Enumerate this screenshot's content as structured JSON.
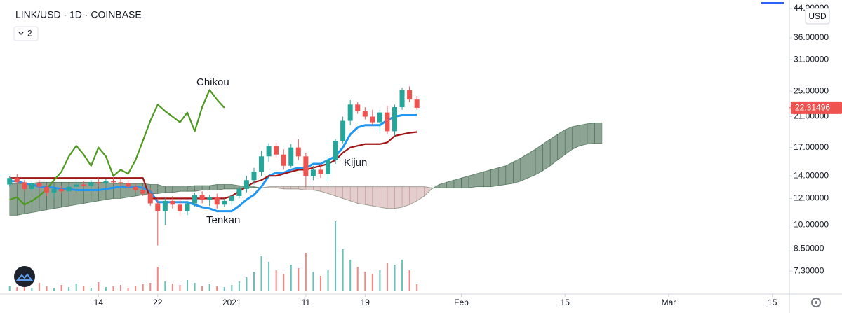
{
  "chart_data": {
    "type": "candlestick",
    "title": "LINK/USD · 1D · COINBASE",
    "indicator_badge": "2",
    "currency": "USD",
    "log_scale": true,
    "grid": false,
    "up_color": "#26a69a",
    "down_color": "#ef5350",
    "cloud_up_color": "#2f5a3c",
    "cloud_down_color": "#a35a5a",
    "xlim": [
      -1.3,
      105.3
    ],
    "xticks": [
      {
        "value": 12,
        "label": "14"
      },
      {
        "value": 20,
        "label": "22"
      },
      {
        "value": 30,
        "label": "2021"
      },
      {
        "value": 40,
        "label": "11"
      },
      {
        "value": 48,
        "label": "19"
      },
      {
        "value": 61,
        "label": "Feb"
      },
      {
        "value": 75,
        "label": "15"
      },
      {
        "value": 89,
        "label": "Mar"
      },
      {
        "value": 103,
        "label": "15"
      }
    ],
    "ylim": [
      6.24,
      46.6
    ],
    "yticks": [
      {
        "value": 44,
        "label": "44.00000"
      },
      {
        "value": 36,
        "label": "36.00000"
      },
      {
        "value": 31,
        "label": "31.00000"
      },
      {
        "value": 25,
        "label": "25.00000"
      },
      {
        "value": 21,
        "label": "21.00000"
      },
      {
        "value": 17,
        "label": "17.00000"
      },
      {
        "value": 14,
        "label": "14.00000"
      },
      {
        "value": 12,
        "label": "12.00000"
      },
      {
        "value": 10,
        "label": "10.00000"
      },
      {
        "value": 8.5,
        "label": "8.50000"
      },
      {
        "value": 7.3,
        "label": "7.30000"
      }
    ],
    "last_price": {
      "value": 22.31496,
      "label": "22.31496"
    },
    "open": [
      13.2,
      13.8,
      13.4,
      12.8,
      13.3,
      13.0,
      12.5,
      12.8,
      12.6,
      13.0,
      13.2,
      13.1,
      13.4,
      13.3,
      13.5,
      13.4,
      13.3,
      13.0,
      12.7,
      12.4,
      11.6,
      11.0,
      11.8,
      11.5,
      11.0,
      11.6,
      12.3,
      11.9,
      12.1,
      11.5,
      11.8,
      12.2,
      12.8,
      13.6,
      14.4,
      16.0,
      17.2,
      16.2,
      15.0,
      17.0,
      16.0,
      14.0,
      14.6,
      14.2,
      15.6,
      17.8,
      20.4,
      22.8,
      21.8,
      21.0,
      20.2,
      21.6,
      19.0,
      22.4,
      25.2,
      23.6
    ],
    "high": [
      14.0,
      14.2,
      13.6,
      13.5,
      13.6,
      13.2,
      13.0,
      13.1,
      13.2,
      13.4,
      13.5,
      13.6,
      13.8,
      13.7,
      13.9,
      13.8,
      13.6,
      13.3,
      13.0,
      12.9,
      12.0,
      12.0,
      12.2,
      11.9,
      11.8,
      12.5,
      12.6,
      12.3,
      12.4,
      12.0,
      12.3,
      13.0,
      14.0,
      14.8,
      16.6,
      17.5,
      17.6,
      16.8,
      17.4,
      18.0,
      16.4,
      15.0,
      15.2,
      16.0,
      18.0,
      21.0,
      23.5,
      23.2,
      22.4,
      22.0,
      22.0,
      22.6,
      22.8,
      25.6,
      25.8,
      24.2
    ],
    "low": [
      13.0,
      13.2,
      12.6,
      12.6,
      12.8,
      12.2,
      12.0,
      12.4,
      12.4,
      12.7,
      12.9,
      12.9,
      13.0,
      13.1,
      13.2,
      13.0,
      12.8,
      12.5,
      12.2,
      11.4,
      8.7,
      10.0,
      11.2,
      10.6,
      10.7,
      11.3,
      11.6,
      11.4,
      11.2,
      11.3,
      11.5,
      12.0,
      12.5,
      13.2,
      14.0,
      15.4,
      15.8,
      14.6,
      14.8,
      15.6,
      13.0,
      13.6,
      13.8,
      13.5,
      15.2,
      17.5,
      19.8,
      21.4,
      20.6,
      19.8,
      19.0,
      18.6,
      18.4,
      22.0,
      23.2,
      22.0
    ],
    "close": [
      13.8,
      13.4,
      12.8,
      13.3,
      13.0,
      12.5,
      12.8,
      12.6,
      13.0,
      13.2,
      13.1,
      13.4,
      13.3,
      13.5,
      13.4,
      13.3,
      13.0,
      12.7,
      12.4,
      11.6,
      11.0,
      11.8,
      11.5,
      11.0,
      11.6,
      12.3,
      11.9,
      12.1,
      11.5,
      11.8,
      12.2,
      12.8,
      13.6,
      14.4,
      16.0,
      17.2,
      16.2,
      15.0,
      17.0,
      16.0,
      14.0,
      14.6,
      14.2,
      15.6,
      17.8,
      20.4,
      22.8,
      21.8,
      21.0,
      20.2,
      21.6,
      19.0,
      22.4,
      25.2,
      23.6,
      22.3
    ],
    "volume": [
      8,
      6,
      10,
      5,
      12,
      7,
      4,
      9,
      6,
      11,
      8,
      5,
      13,
      6,
      7,
      9,
      5,
      8,
      10,
      12,
      35,
      14,
      11,
      9,
      16,
      12,
      8,
      10,
      7,
      6,
      9,
      14,
      20,
      28,
      50,
      42,
      30,
      25,
      38,
      33,
      55,
      28,
      22,
      30,
      100,
      60,
      45,
      35,
      28,
      25,
      30,
      40,
      38,
      45,
      30,
      10
    ],
    "series": [
      {
        "name": "Tenkan",
        "color": "#2196f3",
        "values": [
          13.5,
          13.5,
          13.3,
          13.2,
          13.0,
          13.0,
          12.9,
          12.8,
          12.8,
          12.7,
          12.7,
          12.7,
          12.7,
          12.8,
          12.9,
          13.0,
          13.0,
          13.0,
          12.9,
          12.6,
          11.7,
          11.7,
          11.7,
          11.7,
          11.7,
          11.5,
          11.3,
          11.2,
          11.0,
          11.0,
          11.0,
          11.4,
          11.9,
          12.3,
          13.0,
          14.0,
          14.3,
          14.3,
          14.6,
          14.8,
          14.8,
          15.2,
          15.2,
          15.6,
          16.0,
          17.0,
          18.6,
          19.5,
          19.8,
          19.8,
          19.8,
          20.5,
          21.0,
          21.2,
          21.2,
          21.2
        ]
      },
      {
        "name": "Kijun",
        "color": "#a31515",
        "values": [
          13.8,
          13.8,
          13.8,
          13.8,
          13.8,
          13.8,
          13.8,
          13.8,
          13.8,
          13.8,
          13.8,
          13.8,
          13.8,
          13.8,
          13.8,
          13.8,
          13.8,
          13.8,
          13.8,
          12.0,
          12.0,
          12.0,
          12.0,
          12.0,
          12.0,
          12.0,
          12.0,
          12.0,
          12.0,
          12.0,
          12.2,
          12.6,
          13.0,
          13.4,
          13.6,
          14.0,
          14.0,
          14.2,
          14.4,
          14.6,
          14.6,
          14.8,
          15.0,
          15.2,
          15.6,
          16.4,
          17.0,
          17.2,
          17.4,
          17.4,
          17.4,
          17.6,
          18.4,
          18.6,
          18.8,
          18.9
        ]
      },
      {
        "name": "Chikou",
        "color": "#4e9a1f",
        "values": [
          11.9,
          12.1,
          11.5,
          11.8,
          12.2,
          12.8,
          13.6,
          14.4,
          16.0,
          17.2,
          16.2,
          15.0,
          17.0,
          16.0,
          14.0,
          14.6,
          14.2,
          15.6,
          17.8,
          20.4,
          22.8,
          21.8,
          21.0,
          20.2,
          21.6,
          19.0,
          22.4,
          25.2,
          23.6,
          22.3
        ]
      }
    ],
    "span_a": [
      13.3,
      13.3,
      13.3,
      13.3,
      13.4,
      13.4,
      13.4,
      13.4,
      13.4,
      13.4,
      13.4,
      13.4,
      13.4,
      13.4,
      13.3,
      13.3,
      13.3,
      13.3,
      13.3,
      13.2,
      13.2,
      13.0,
      13.0,
      13.0,
      13.0,
      13.1,
      13.1,
      13.1,
      13.2,
      13.2,
      13.2,
      13.1,
      13.0,
      13.0,
      12.9,
      12.9,
      12.9,
      12.8,
      12.8,
      12.8,
      12.7,
      12.7,
      12.6,
      12.4,
      12.2,
      12.0,
      11.8,
      11.6,
      11.5,
      11.4,
      11.3,
      11.2,
      11.2,
      11.3,
      11.5,
      11.8,
      12.2,
      12.8,
      13.2,
      13.4,
      13.6,
      13.8,
      14.0,
      14.2,
      14.4,
      14.6,
      14.8,
      15.0,
      15.4,
      15.8,
      16.3,
      16.8,
      17.4,
      18.0,
      18.6,
      19.2,
      19.6,
      19.8,
      20.0,
      20.1,
      20.1
    ],
    "span_b": [
      10.7,
      10.7,
      10.8,
      10.9,
      11.0,
      11.1,
      11.2,
      11.3,
      11.4,
      11.5,
      11.6,
      11.7,
      11.8,
      11.9,
      12.0,
      12.0,
      12.1,
      12.2,
      12.3,
      12.4,
      12.4,
      12.5,
      12.5,
      12.6,
      12.6,
      12.6,
      12.7,
      12.7,
      12.7,
      12.8,
      12.8,
      12.8,
      12.9,
      12.9,
      12.9,
      13.0,
      13.0,
      13.0,
      13.0,
      13.0,
      13.0,
      13.0,
      13.0,
      13.0,
      13.0,
      13.0,
      13.0,
      13.0,
      13.0,
      13.0,
      13.0,
      13.0,
      13.0,
      13.0,
      13.0,
      13.0,
      13.0,
      12.9,
      12.9,
      12.9,
      12.9,
      12.9,
      12.9,
      13.0,
      13.0,
      13.0,
      13.1,
      13.2,
      13.3,
      13.5,
      13.8,
      14.1,
      14.5,
      15.0,
      15.6,
      16.2,
      16.8,
      17.2,
      17.4,
      17.5,
      17.5
    ]
  }
}
